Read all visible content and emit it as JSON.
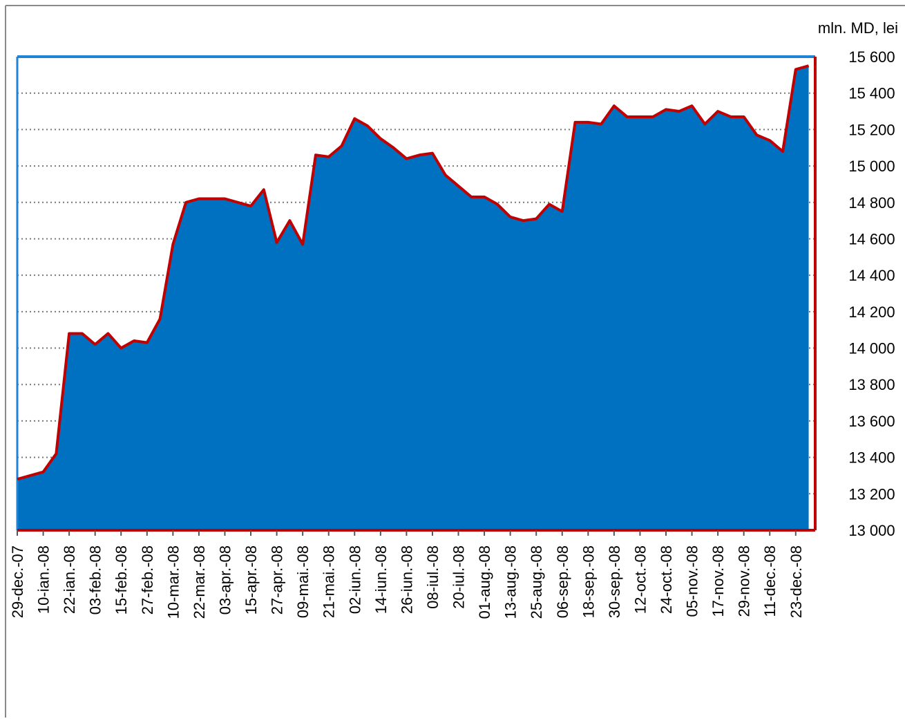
{
  "chart_data": {
    "type": "area",
    "y_axis_label": "mln. MD, lei",
    "categories": [
      "29-dec.-07",
      null,
      "10-ian.-08",
      null,
      "22-ian.-08",
      null,
      "03-feb.-08",
      null,
      "15-feb.-08",
      null,
      "27-feb.-08",
      null,
      "10-mar.-08",
      null,
      "22-mar.-08",
      null,
      "03-apr.-08",
      null,
      "15-apr.-08",
      null,
      "27-apr.-08",
      null,
      "09-mai.-08",
      null,
      "21-mai.-08",
      null,
      "02-iun.-08",
      null,
      "14-iun.-08",
      null,
      "26-iun.-08",
      null,
      "08-iul.-08",
      null,
      "20-iul.-08",
      null,
      "01-aug.-08",
      null,
      "13-aug.-08",
      null,
      "25-aug.-08",
      null,
      "06-sep.-08",
      null,
      "18-sep.-08",
      null,
      "30-sep.-08",
      null,
      "12-oct.-08",
      null,
      "24-oct.-08",
      null,
      "05-nov.-08",
      null,
      "17-nov.-08",
      null,
      "29-nov.-08",
      null,
      "11-dec.-08",
      null,
      "23-dec.-08",
      null
    ],
    "values": [
      13280,
      13300,
      13320,
      13420,
      14080,
      14080,
      14020,
      14080,
      14000,
      14040,
      14030,
      14160,
      14570,
      14800,
      14820,
      14820,
      14820,
      14800,
      14780,
      14870,
      14580,
      14700,
      14570,
      15060,
      15050,
      15110,
      15260,
      15220,
      15150,
      15100,
      15040,
      15060,
      15070,
      14950,
      14890,
      14830,
      14830,
      14790,
      14720,
      14700,
      14710,
      14790,
      14750,
      15240,
      15240,
      15230,
      15330,
      15270,
      15270,
      15270,
      15310,
      15300,
      15330,
      15230,
      15300,
      15270,
      15270,
      15170,
      15140,
      15080,
      15530,
      15550
    ],
    "fill_color": "#0070c0",
    "line_color": "#c00000",
    "ylim": [
      13000,
      15600
    ],
    "yticks": [
      {
        "value": 13000,
        "label": "13 000"
      },
      {
        "value": 13200,
        "label": "13 200"
      },
      {
        "value": 13400,
        "label": "13 400"
      },
      {
        "value": 13600,
        "label": "13 600"
      },
      {
        "value": 13800,
        "label": "13 800"
      },
      {
        "value": 14000,
        "label": "14 000"
      },
      {
        "value": 14200,
        "label": "14 200"
      },
      {
        "value": 14400,
        "label": "14 400"
      },
      {
        "value": 14600,
        "label": "14 600"
      },
      {
        "value": 14800,
        "label": "14 800"
      },
      {
        "value": 15000,
        "label": "15 000"
      },
      {
        "value": 15200,
        "label": "15 200"
      },
      {
        "value": 15400,
        "label": "15 400"
      },
      {
        "value": 15600,
        "label": "15 600"
      }
    ],
    "grid": true
  }
}
